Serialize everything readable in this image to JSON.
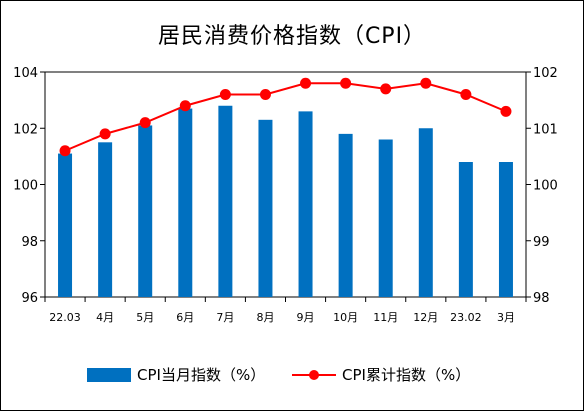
{
  "chart_data": {
    "type": "bar+line",
    "title": "居民消费价格指数（CPI）",
    "categories": [
      "22.03",
      "4月",
      "5月",
      "6月",
      "7月",
      "8月",
      "9月",
      "10月",
      "11月",
      "12月",
      "23.02",
      "3月"
    ],
    "series": [
      {
        "name": "CPI当月指数（%）",
        "type": "bar",
        "axis": "left",
        "color": "#0070c0",
        "values": [
          101.1,
          101.5,
          102.1,
          102.7,
          102.8,
          102.3,
          102.6,
          101.8,
          101.6,
          102.0,
          100.8,
          100.8
        ]
      },
      {
        "name": "CPI累计指数（%）",
        "type": "line",
        "axis": "right",
        "color": "#ff0000",
        "values": [
          100.6,
          100.9,
          101.1,
          101.4,
          101.6,
          101.6,
          101.8,
          101.8,
          101.7,
          101.8,
          101.6,
          101.3
        ]
      }
    ],
    "y_left": {
      "min": 96,
      "max": 104,
      "ticks": [
        96,
        98,
        100,
        102,
        104
      ]
    },
    "y_right": {
      "min": 98,
      "max": 102,
      "ticks": [
        98,
        99,
        100,
        101,
        102
      ]
    },
    "grid": false,
    "legend": "bottom"
  }
}
